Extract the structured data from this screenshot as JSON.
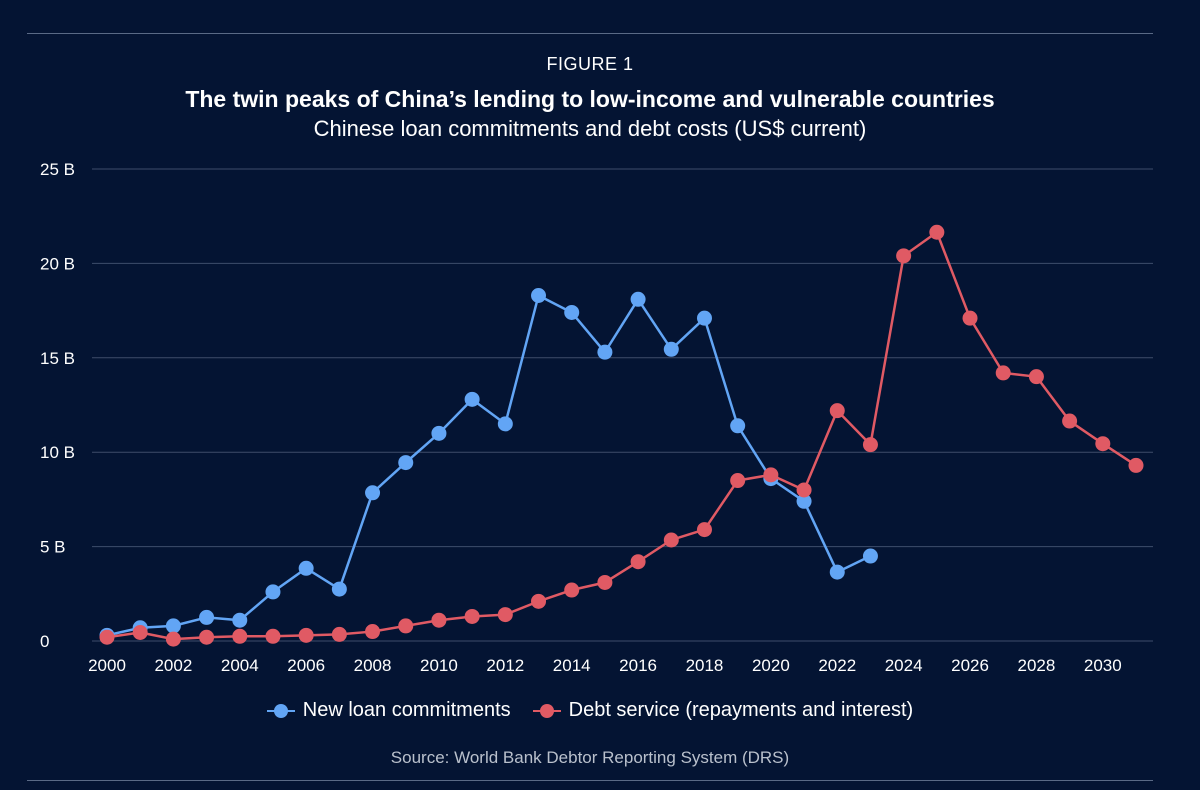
{
  "figure_label": "FIGURE 1",
  "title": "The twin peaks of China’s lending to low-income and vulnerable countries",
  "subtitle": "Chinese loan commitments and debt costs (US$ current)",
  "source": "Source: World Bank Debtor Reporting System (DRS)",
  "colors": {
    "background": "#041433",
    "grid": "#3e4d6b",
    "new_loans": "#62a5f5",
    "debt_service": "#e05a64"
  },
  "chart_data": {
    "type": "line",
    "title": "The twin peaks of China’s lending to low-income and vulnerable countries",
    "xlabel": "",
    "ylabel": "",
    "xlim": [
      2000,
      2031
    ],
    "ylim": [
      0,
      25
    ],
    "y_unit": "US$ billions",
    "grid": true,
    "legend_position": "bottom-center",
    "x_ticks": [
      2000,
      2002,
      2004,
      2006,
      2008,
      2010,
      2012,
      2014,
      2016,
      2018,
      2020,
      2022,
      2024,
      2026,
      2028,
      2030
    ],
    "x_tick_labels": [
      "2000",
      "2002",
      "2004",
      "2006",
      "2008",
      "2010",
      "2012",
      "2014",
      "2016",
      "2018",
      "2020",
      "2022",
      "2024",
      "2026",
      "2028",
      "2030"
    ],
    "y_ticks": [
      0,
      5,
      10,
      15,
      20,
      25
    ],
    "y_tick_labels": [
      "0",
      "5 B",
      "10 B",
      "15 B",
      "20 B",
      "25 B"
    ],
    "series": [
      {
        "name": "New loan commitments",
        "color": "#62a5f5",
        "x": [
          2000,
          2001,
          2002,
          2003,
          2004,
          2005,
          2006,
          2007,
          2008,
          2009,
          2010,
          2011,
          2012,
          2013,
          2014,
          2015,
          2016,
          2017,
          2018,
          2019,
          2020,
          2021,
          2022,
          2023
        ],
        "values": [
          0.3,
          0.7,
          0.8,
          1.25,
          1.1,
          2.6,
          3.85,
          2.75,
          7.85,
          9.45,
          11.0,
          12.8,
          11.5,
          18.3,
          17.4,
          15.3,
          18.1,
          15.45,
          17.1,
          11.4,
          8.6,
          7.4,
          3.65,
          4.5
        ]
      },
      {
        "name": "Debt service (repayments and interest)",
        "color": "#e05a64",
        "x": [
          2000,
          2001,
          2002,
          2003,
          2004,
          2005,
          2006,
          2007,
          2008,
          2009,
          2010,
          2011,
          2012,
          2013,
          2014,
          2015,
          2016,
          2017,
          2018,
          2019,
          2020,
          2021,
          2022,
          2023,
          2024,
          2025,
          2026,
          2027,
          2028,
          2029,
          2030,
          2031
        ],
        "values": [
          0.2,
          0.45,
          0.1,
          0.2,
          0.25,
          0.25,
          0.3,
          0.35,
          0.5,
          0.8,
          1.1,
          1.3,
          1.4,
          2.1,
          2.7,
          3.1,
          4.2,
          5.35,
          5.9,
          8.5,
          8.8,
          8.0,
          12.2,
          10.4,
          20.4,
          21.65,
          17.1,
          14.2,
          14.0,
          11.65,
          10.45,
          9.3
        ]
      }
    ]
  }
}
